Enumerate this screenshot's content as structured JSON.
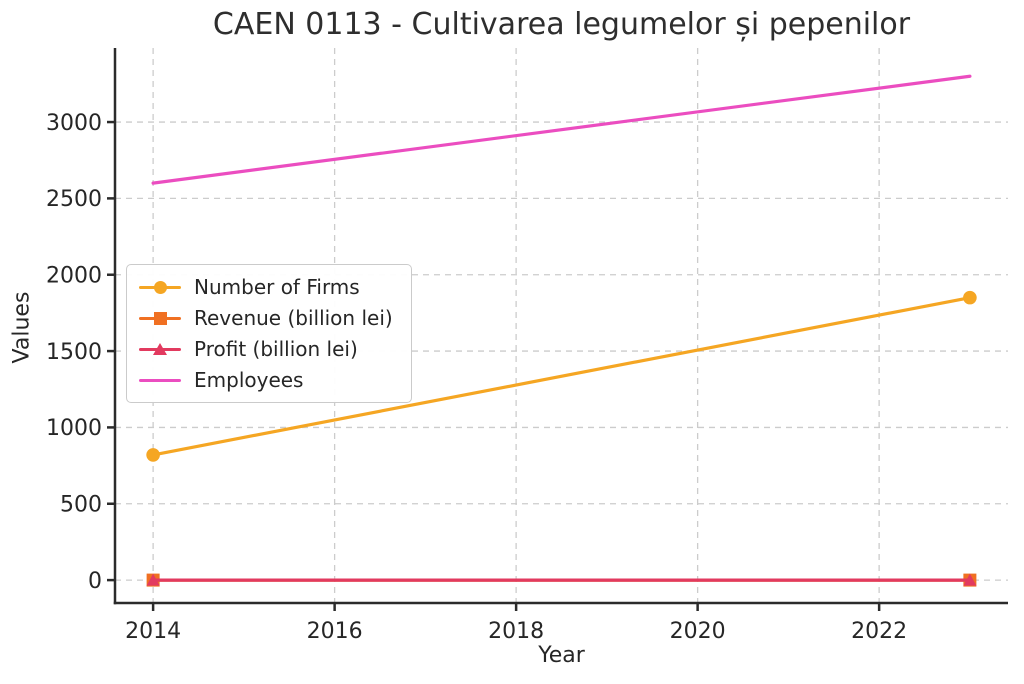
{
  "figure": {
    "colors": {
      "background": "#ffffff",
      "grid": "#cccccc",
      "spine": "#2b2b2b",
      "title_text": "#2e2e2e",
      "tick_text": "#262626",
      "legend_border": "#cbcbcb"
    }
  },
  "chart_data": {
    "type": "line",
    "title": "CAEN 0113 - Cultivarea legumelor și pepenilor",
    "xlabel": "Year",
    "ylabel": "Values",
    "x": [
      2014,
      2023
    ],
    "series": [
      {
        "name": "Number of Firms",
        "values": [
          820,
          1850
        ],
        "color": "#F5A623",
        "marker": "circle"
      },
      {
        "name": "Revenue (billion lei)",
        "values": [
          0,
          0
        ],
        "color": "#F07022",
        "marker": "square"
      },
      {
        "name": "Profit (billion lei)",
        "values": [
          0,
          0
        ],
        "color": "#E23A5F",
        "marker": "triangle"
      },
      {
        "name": "Employees",
        "values": [
          2600,
          3300
        ],
        "color": "#EB4DC0",
        "marker": "none"
      }
    ],
    "x_ticks": [
      2014,
      2016,
      2018,
      2020,
      2022
    ],
    "y_ticks": [
      0,
      500,
      1000,
      1500,
      2000,
      2500,
      3000
    ],
    "x_range": [
      2013.58,
      2023.42
    ],
    "y_range": [
      -150,
      3485
    ],
    "grid": true,
    "grid_style": "dashed",
    "legend_position": "center-left"
  }
}
